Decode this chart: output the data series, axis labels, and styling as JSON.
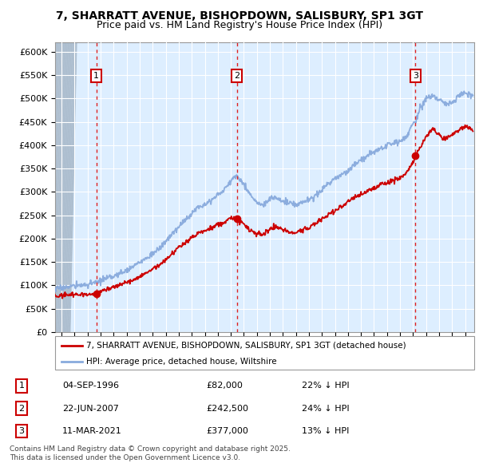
{
  "title_line1": "7, SHARRATT AVENUE, BISHOPDOWN, SALISBURY, SP1 3GT",
  "title_line2": "Price paid vs. HM Land Registry's House Price Index (HPI)",
  "ylim": [
    0,
    620000
  ],
  "yticks": [
    0,
    50000,
    100000,
    150000,
    200000,
    250000,
    300000,
    350000,
    400000,
    450000,
    500000,
    550000,
    600000
  ],
  "ytick_labels": [
    "£0",
    "£50K",
    "£100K",
    "£150K",
    "£200K",
    "£250K",
    "£300K",
    "£350K",
    "£400K",
    "£450K",
    "£500K",
    "£550K",
    "£600K"
  ],
  "xlim_start": 1993.5,
  "xlim_end": 2025.7,
  "sales": [
    {
      "num": 1,
      "year": 1996.67,
      "price": 82000,
      "date": "04-SEP-1996",
      "pct": "22%",
      "label": "£82,000"
    },
    {
      "num": 2,
      "year": 2007.47,
      "price": 242500,
      "date": "22-JUN-2007",
      "pct": "24%",
      "label": "£242,500"
    },
    {
      "num": 3,
      "year": 2021.19,
      "price": 377000,
      "date": "11-MAR-2021",
      "pct": "13%",
      "label": "£377,000"
    }
  ],
  "house_color": "#cc0000",
  "hpi_color": "#88aadd",
  "legend_house": "7, SHARRATT AVENUE, BISHOPDOWN, SALISBURY, SP1 3GT (detached house)",
  "legend_hpi": "HPI: Average price, detached house, Wiltshire",
  "footer1": "Contains HM Land Registry data © Crown copyright and database right 2025.",
  "footer2": "This data is licensed under the Open Government Licence v3.0.",
  "bg_color": "#ddeeff",
  "hpi_anchors": [
    [
      1993.5,
      92000
    ],
    [
      1994.0,
      95000
    ],
    [
      1994.5,
      97000
    ],
    [
      1995.0,
      99000
    ],
    [
      1995.5,
      100000
    ],
    [
      1996.0,
      102000
    ],
    [
      1996.67,
      106000
    ],
    [
      1997.5,
      115000
    ],
    [
      1998.5,
      125000
    ],
    [
      1999.5,
      140000
    ],
    [
      2000.5,
      158000
    ],
    [
      2001.5,
      178000
    ],
    [
      2002.5,
      210000
    ],
    [
      2003.5,
      240000
    ],
    [
      2004.5,
      268000
    ],
    [
      2005.5,
      282000
    ],
    [
      2006.5,
      305000
    ],
    [
      2007.2,
      330000
    ],
    [
      2007.47,
      335000
    ],
    [
      2007.9,
      320000
    ],
    [
      2008.5,
      295000
    ],
    [
      2009.0,
      275000
    ],
    [
      2009.5,
      272000
    ],
    [
      2010.0,
      285000
    ],
    [
      2010.5,
      288000
    ],
    [
      2011.0,
      280000
    ],
    [
      2011.5,
      275000
    ],
    [
      2012.0,
      272000
    ],
    [
      2012.5,
      278000
    ],
    [
      2013.0,
      282000
    ],
    [
      2013.5,
      292000
    ],
    [
      2014.0,
      305000
    ],
    [
      2014.5,
      318000
    ],
    [
      2015.0,
      328000
    ],
    [
      2015.5,
      335000
    ],
    [
      2016.0,
      345000
    ],
    [
      2016.5,
      358000
    ],
    [
      2017.0,
      368000
    ],
    [
      2017.5,
      378000
    ],
    [
      2018.0,
      385000
    ],
    [
      2018.5,
      392000
    ],
    [
      2019.0,
      398000
    ],
    [
      2019.5,
      405000
    ],
    [
      2020.0,
      408000
    ],
    [
      2020.5,
      420000
    ],
    [
      2021.0,
      445000
    ],
    [
      2021.19,
      450000
    ],
    [
      2021.5,
      475000
    ],
    [
      2022.0,
      500000
    ],
    [
      2022.5,
      508000
    ],
    [
      2023.0,
      498000
    ],
    [
      2023.5,
      488000
    ],
    [
      2024.0,
      492000
    ],
    [
      2024.5,
      505000
    ],
    [
      2025.0,
      512000
    ],
    [
      2025.5,
      508000
    ]
  ],
  "house_anchors": [
    [
      1993.5,
      76000
    ],
    [
      1994.0,
      78000
    ],
    [
      1994.5,
      80000
    ],
    [
      1995.0,
      80000
    ],
    [
      1995.5,
      80000
    ],
    [
      1996.0,
      81000
    ],
    [
      1996.67,
      82000
    ],
    [
      1997.0,
      88000
    ],
    [
      1997.5,
      92000
    ],
    [
      1998.5,
      100000
    ],
    [
      1999.5,
      112000
    ],
    [
      2000.5,
      126000
    ],
    [
      2001.5,
      143000
    ],
    [
      2002.5,
      168000
    ],
    [
      2003.5,
      192000
    ],
    [
      2004.5,
      212000
    ],
    [
      2005.5,
      222000
    ],
    [
      2006.5,
      236000
    ],
    [
      2007.2,
      245000
    ],
    [
      2007.47,
      242500
    ],
    [
      2007.9,
      235000
    ],
    [
      2008.5,
      218000
    ],
    [
      2009.0,
      208000
    ],
    [
      2009.5,
      210000
    ],
    [
      2010.0,
      220000
    ],
    [
      2010.5,
      225000
    ],
    [
      2011.0,
      218000
    ],
    [
      2011.5,
      215000
    ],
    [
      2012.0,
      212000
    ],
    [
      2012.5,
      218000
    ],
    [
      2013.0,
      222000
    ],
    [
      2013.5,
      232000
    ],
    [
      2014.0,
      242000
    ],
    [
      2014.5,
      252000
    ],
    [
      2015.0,
      260000
    ],
    [
      2015.5,
      268000
    ],
    [
      2016.0,
      278000
    ],
    [
      2016.5,
      288000
    ],
    [
      2017.0,
      295000
    ],
    [
      2017.5,
      302000
    ],
    [
      2018.0,
      308000
    ],
    [
      2018.5,
      315000
    ],
    [
      2019.0,
      320000
    ],
    [
      2019.5,
      325000
    ],
    [
      2020.0,
      328000
    ],
    [
      2020.5,
      340000
    ],
    [
      2021.0,
      362000
    ],
    [
      2021.19,
      377000
    ],
    [
      2021.5,
      392000
    ],
    [
      2022.0,
      418000
    ],
    [
      2022.5,
      435000
    ],
    [
      2023.0,
      422000
    ],
    [
      2023.5,
      412000
    ],
    [
      2024.0,
      422000
    ],
    [
      2024.5,
      432000
    ],
    [
      2025.0,
      440000
    ],
    [
      2025.5,
      435000
    ]
  ]
}
